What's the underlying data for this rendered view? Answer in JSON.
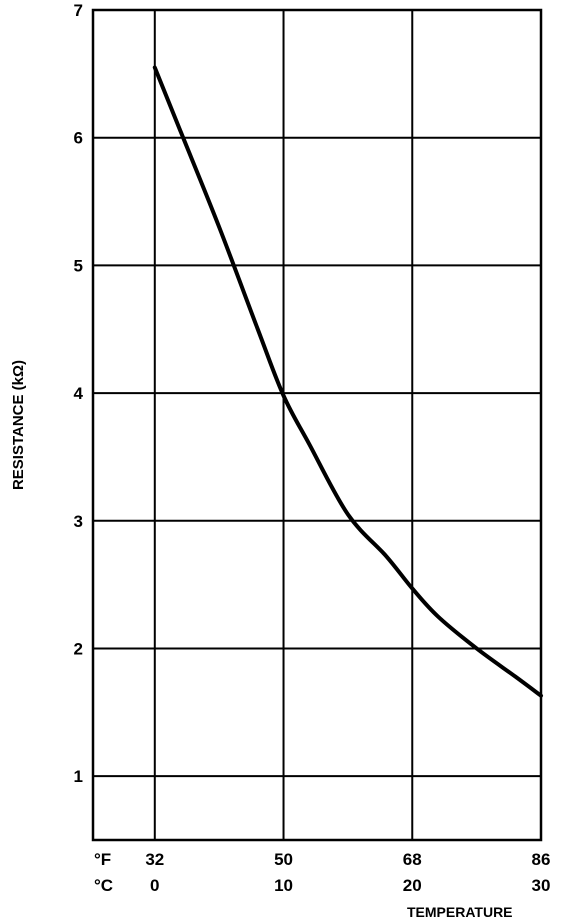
{
  "chart_data": {
    "type": "line",
    "title": "",
    "xlabel": "TEMPERATURE",
    "ylabel": "RESISTANCE (kΩ)",
    "xlim": [
      -4.8,
      30
    ],
    "ylim": [
      0.5,
      7
    ],
    "x_units_primary": "°C",
    "x_units_secondary": "°F",
    "x_ticks_c": [
      "0",
      "10",
      "20",
      "30"
    ],
    "x_ticks_f": [
      "32",
      "50",
      "68",
      "86"
    ],
    "x_tick_values": [
      0,
      10,
      20,
      30
    ],
    "y_ticks": [
      "1",
      "2",
      "3",
      "4",
      "5",
      "6",
      "7"
    ],
    "y_tick_values": [
      1,
      2,
      3,
      4,
      5,
      6,
      7
    ],
    "grid": true,
    "series": [
      {
        "x": [
          0,
          2,
          5,
          8,
          10,
          12,
          15,
          18,
          20,
          22,
          25,
          28,
          30
        ],
        "y": [
          6.55,
          6.05,
          5.3,
          4.5,
          3.98,
          3.6,
          3.05,
          2.72,
          2.47,
          2.25,
          2.0,
          1.78,
          1.63
        ]
      }
    ]
  }
}
